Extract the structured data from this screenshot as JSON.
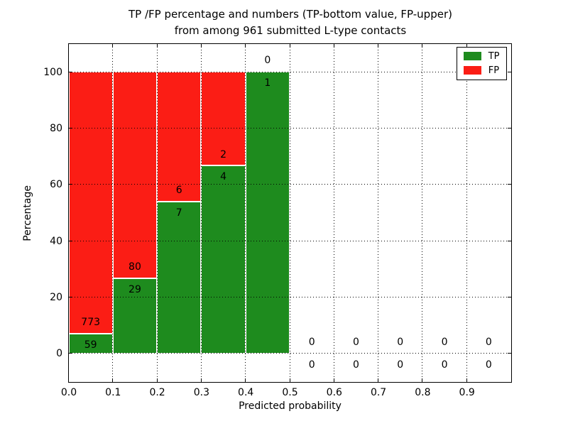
{
  "figure": {
    "title_line1": "TP /FP percentage and numbers (TP-bottom value, FP-upper)",
    "title_line2": "from among 961 submitted L-type contacts"
  },
  "chart_data": {
    "type": "bar",
    "subtype": "stacked-percentage-histogram",
    "title": "TP /FP percentage and numbers (TP-bottom value, FP-upper)\nfrom among 961 submitted L-type contacts",
    "xlabel": "Predicted probability",
    "ylabel": "Percentage",
    "total_submitted": 961,
    "bin_width": 0.1,
    "bin_starts": [
      0.0,
      0.1,
      0.2,
      0.3,
      0.4,
      0.5,
      0.6,
      0.7,
      0.8,
      0.9
    ],
    "series": [
      {
        "name": "TP",
        "color": "#1e8b1e",
        "counts": [
          59,
          29,
          7,
          4,
          1,
          0,
          0,
          0,
          0,
          0
        ]
      },
      {
        "name": "FP",
        "color": "#fb1d15",
        "counts": [
          773,
          80,
          6,
          2,
          0,
          0,
          0,
          0,
          0,
          0
        ]
      }
    ],
    "tp_percent_per_bin": [
      7.09,
      26.61,
      53.85,
      66.67,
      100.0,
      0,
      0,
      0,
      0,
      0
    ],
    "xticks": [
      "0.0",
      "0.1",
      "0.2",
      "0.3",
      "0.4",
      "0.5",
      "0.6",
      "0.7",
      "0.8",
      "0.9"
    ],
    "xtick_values": [
      0.0,
      0.1,
      0.2,
      0.3,
      0.4,
      0.5,
      0.6,
      0.7,
      0.8,
      0.9
    ],
    "yticks": [
      "0",
      "20",
      "40",
      "60",
      "80",
      "100"
    ],
    "ytick_values": [
      0,
      20,
      40,
      60,
      80,
      100
    ],
    "xlim": [
      0.0,
      1.0
    ],
    "ylim": [
      -10,
      110
    ],
    "grid": "dotted",
    "label_offset_percent": 4,
    "legend": {
      "position": "upper right",
      "entries": [
        {
          "label": "TP",
          "color": "#1e8b1e"
        },
        {
          "label": "FP",
          "color": "#fb1d15"
        }
      ]
    }
  }
}
